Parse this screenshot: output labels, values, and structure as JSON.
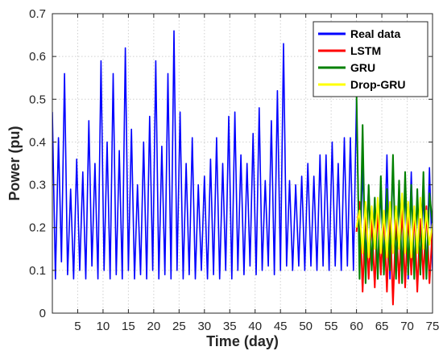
{
  "chart_data": {
    "type": "line",
    "title": "",
    "xlabel": "Time (day)",
    "ylabel": "Power (pu)",
    "xlim": [
      0,
      75
    ],
    "ylim": [
      0,
      0.7
    ],
    "xticks": [
      5,
      10,
      15,
      20,
      25,
      30,
      35,
      40,
      45,
      50,
      55,
      60,
      65,
      70,
      75
    ],
    "yticks": [
      0,
      0.1,
      0.2,
      0.3,
      0.4,
      0.5,
      0.6,
      0.7
    ],
    "grid": true,
    "legend_position": "top-right",
    "series": [
      {
        "name": "Real data",
        "color": "#0000ff",
        "x": [
          0,
          0.6,
          1.2,
          1.8,
          2.4,
          3.0,
          3.6,
          4.2,
          4.8,
          5.4,
          6.0,
          6.6,
          7.2,
          7.8,
          8.4,
          9.0,
          9.6,
          10.2,
          10.8,
          11.4,
          12.0,
          12.6,
          13.2,
          13.8,
          14.4,
          15.0,
          15.6,
          16.2,
          16.8,
          17.4,
          18.0,
          18.6,
          19.2,
          19.8,
          20.4,
          21.0,
          21.6,
          22.2,
          22.8,
          23.4,
          24.0,
          24.6,
          25.2,
          25.8,
          26.4,
          27.0,
          27.6,
          28.2,
          28.8,
          29.4,
          30.0,
          30.6,
          31.2,
          31.8,
          32.4,
          33.0,
          33.6,
          34.2,
          34.8,
          35.4,
          36.0,
          36.6,
          37.2,
          37.8,
          38.4,
          39.0,
          39.6,
          40.2,
          40.8,
          41.4,
          42.0,
          42.6,
          43.2,
          43.8,
          44.4,
          45.0,
          45.6,
          46.2,
          46.8,
          47.4,
          48.0,
          48.6,
          49.2,
          49.8,
          50.4,
          51.0,
          51.6,
          52.2,
          52.8,
          53.4,
          54.0,
          54.6,
          55.2,
          55.8,
          56.4,
          57.0,
          57.6,
          58.2,
          58.8,
          59.4,
          60.0,
          60.6,
          61.2,
          61.8,
          62.4,
          63.0,
          63.6,
          64.2,
          64.8,
          65.4,
          66.0,
          66.6,
          67.2,
          67.8,
          68.4,
          69.0,
          69.6,
          70.2,
          70.8,
          71.4,
          72.0,
          72.6,
          73.2,
          73.8,
          74.4,
          75.0
        ],
        "y": [
          0.47,
          0.08,
          0.41,
          0.12,
          0.56,
          0.09,
          0.29,
          0.08,
          0.36,
          0.1,
          0.33,
          0.08,
          0.45,
          0.11,
          0.35,
          0.08,
          0.59,
          0.1,
          0.4,
          0.08,
          0.56,
          0.09,
          0.38,
          0.08,
          0.62,
          0.1,
          0.43,
          0.08,
          0.3,
          0.09,
          0.4,
          0.08,
          0.46,
          0.1,
          0.59,
          0.08,
          0.39,
          0.09,
          0.56,
          0.08,
          0.66,
          0.1,
          0.47,
          0.08,
          0.35,
          0.09,
          0.41,
          0.08,
          0.3,
          0.1,
          0.32,
          0.08,
          0.36,
          0.09,
          0.41,
          0.08,
          0.35,
          0.1,
          0.46,
          0.08,
          0.47,
          0.1,
          0.37,
          0.09,
          0.35,
          0.11,
          0.42,
          0.09,
          0.48,
          0.1,
          0.31,
          0.11,
          0.45,
          0.09,
          0.52,
          0.1,
          0.63,
          0.11,
          0.31,
          0.1,
          0.3,
          0.11,
          0.32,
          0.1,
          0.35,
          0.11,
          0.32,
          0.1,
          0.37,
          0.11,
          0.37,
          0.1,
          0.4,
          0.11,
          0.35,
          0.1,
          0.41,
          0.11,
          0.41,
          0.1,
          0.5,
          0.09,
          0.34,
          0.12,
          0.3,
          0.1,
          0.27,
          0.09,
          0.29,
          0.1,
          0.37,
          0.08,
          0.35,
          0.11,
          0.28,
          0.1,
          0.3,
          0.08,
          0.33,
          0.09,
          0.27,
          0.11,
          0.28,
          0.08,
          0.34,
          0.1
        ]
      },
      {
        "name": "LSTM",
        "color": "#ff0000",
        "x": [
          60.0,
          60.6,
          61.2,
          61.8,
          62.4,
          63.0,
          63.6,
          64.2,
          64.8,
          65.4,
          66.0,
          66.6,
          67.2,
          67.8,
          68.4,
          69.0,
          69.6,
          70.2,
          70.8,
          71.4,
          72.0,
          72.6,
          73.2,
          73.8,
          74.4,
          75.0
        ],
        "y": [
          0.19,
          0.26,
          0.05,
          0.24,
          0.08,
          0.22,
          0.06,
          0.25,
          0.09,
          0.23,
          0.05,
          0.24,
          0.02,
          0.22,
          0.07,
          0.25,
          0.06,
          0.23,
          0.09,
          0.24,
          0.05,
          0.22,
          0.08,
          0.25,
          0.07,
          0.2
        ]
      },
      {
        "name": "GRU",
        "color": "#008000",
        "x": [
          60.0,
          60.6,
          61.2,
          61.8,
          62.4,
          63.0,
          63.6,
          64.2,
          64.8,
          65.4,
          66.0,
          66.6,
          67.2,
          67.8,
          68.4,
          69.0,
          69.6,
          70.2,
          70.8,
          71.4,
          72.0,
          72.6,
          73.2,
          73.8,
          74.4,
          75.0
        ],
        "y": [
          0.52,
          0.08,
          0.44,
          0.07,
          0.3,
          0.1,
          0.27,
          0.08,
          0.32,
          0.09,
          0.29,
          0.1,
          0.37,
          0.08,
          0.31,
          0.07,
          0.33,
          0.09,
          0.3,
          0.08,
          0.29,
          0.09,
          0.33,
          0.08,
          0.28,
          0.21
        ]
      },
      {
        "name": "Drop-GRU",
        "color": "#ffff00",
        "x": [
          60.0,
          60.6,
          61.2,
          61.8,
          62.4,
          63.0,
          63.6,
          64.2,
          64.8,
          65.4,
          66.0,
          66.6,
          67.2,
          67.8,
          68.4,
          69.0,
          69.6,
          70.2,
          70.8,
          71.4,
          72.0,
          72.6,
          73.2,
          73.8,
          74.4,
          75.0
        ],
        "y": [
          0.2,
          0.24,
          0.14,
          0.26,
          0.13,
          0.25,
          0.15,
          0.27,
          0.14,
          0.24,
          0.13,
          0.26,
          0.14,
          0.25,
          0.15,
          0.28,
          0.14,
          0.26,
          0.13,
          0.25,
          0.14,
          0.27,
          0.15,
          0.24,
          0.16,
          0.21
        ]
      }
    ]
  }
}
